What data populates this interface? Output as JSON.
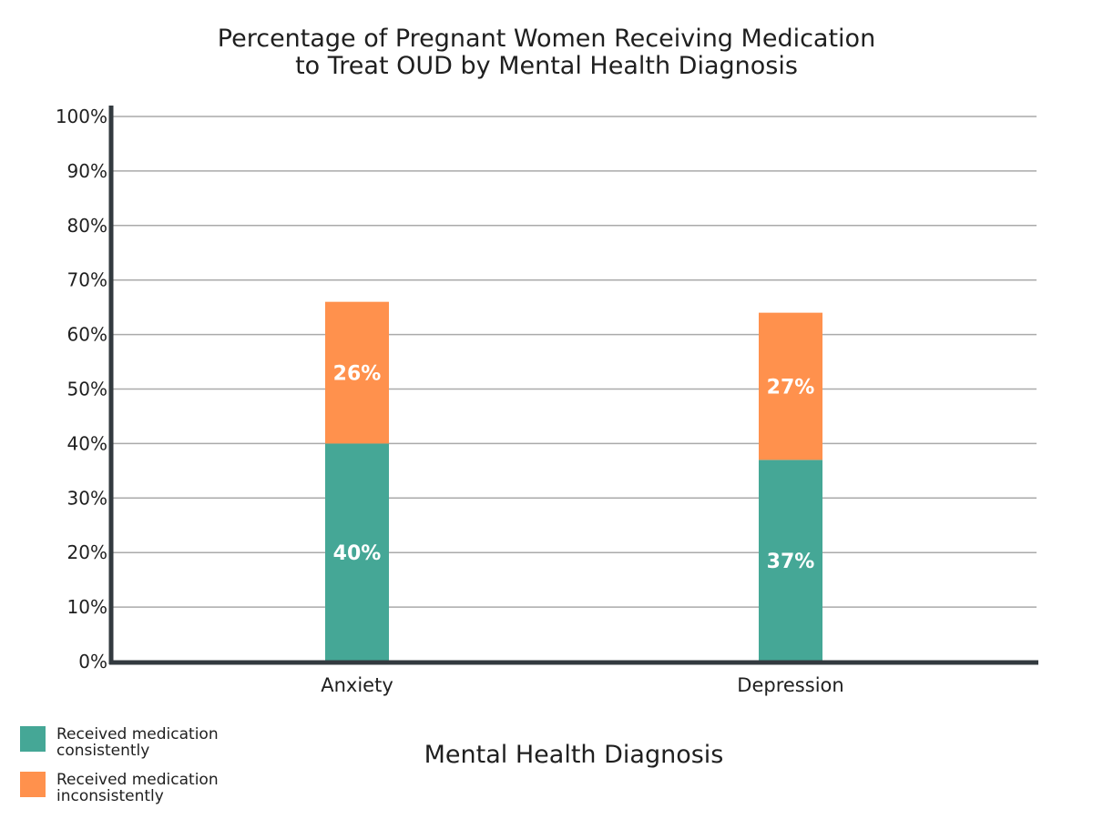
{
  "chart_data": {
    "type": "bar",
    "stacked": true,
    "title": "Percentage of Pregnant Women Receiving Medication to Treat OUD by Mental Health Diagnosis",
    "title_lines": [
      "Percentage of Pregnant Women Receiving Medication",
      "to Treat OUD by Mental Health Diagnosis"
    ],
    "xlabel": "Mental Health Diagnosis",
    "ylabel": "",
    "categories": [
      "Anxiety",
      "Depression"
    ],
    "ylim": [
      0,
      100
    ],
    "yticks": [
      0,
      10,
      20,
      30,
      40,
      50,
      60,
      70,
      80,
      90,
      100
    ],
    "ytick_suffix": "%",
    "grid": true,
    "legend_position": "bottom-left",
    "series": [
      {
        "name": "Received medication consistently",
        "name_lines": [
          "Received medication",
          "consistently"
        ],
        "color": "#45a796",
        "values": [
          40,
          37
        ],
        "labels": [
          "40%",
          "37%"
        ]
      },
      {
        "name": "Received medication inconsistently",
        "name_lines": [
          "Received medication",
          "inconsistently"
        ],
        "color": "#ff914d",
        "values": [
          26,
          27
        ],
        "labels": [
          "26%",
          "27%"
        ]
      }
    ]
  }
}
